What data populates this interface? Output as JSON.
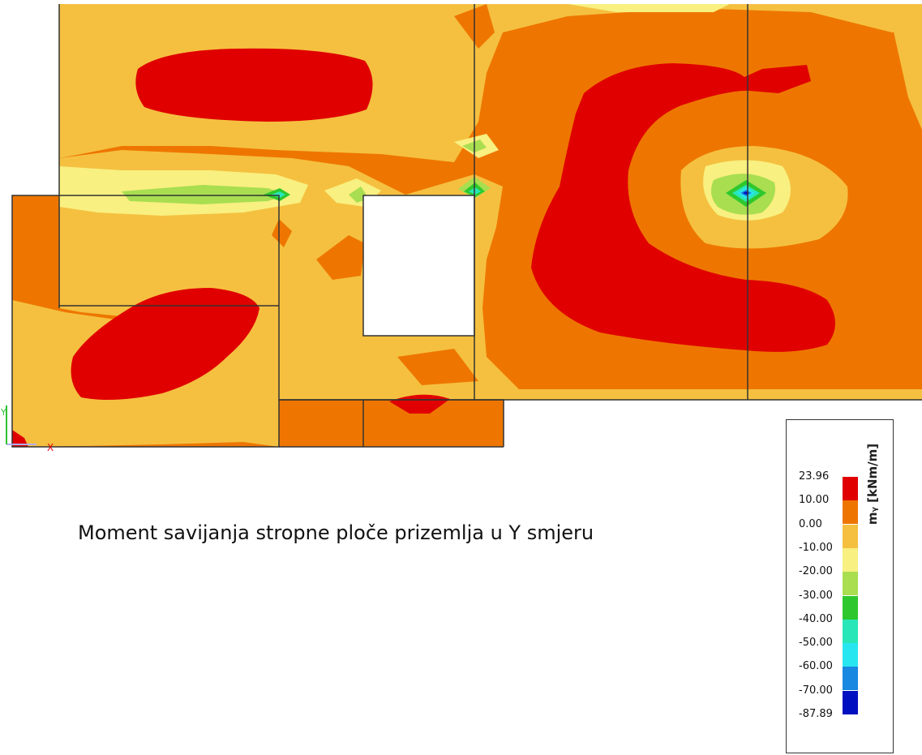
{
  "caption": "Moment savijanja stropne ploče prizemlja u Y smjeru",
  "legend": {
    "title": "mᵧ [kNm/m]",
    "labels": [
      "23.96",
      "10.00",
      "0.00",
      "-10.00",
      "-20.00",
      "-30.00",
      "-40.00",
      "-50.00",
      "-60.00",
      "-70.00",
      "-87.89"
    ],
    "colors": [
      "#e00000",
      "#ee7600",
      "#f5c040",
      "#f8f080",
      "#a8de50",
      "#2ec82e",
      "#28e6b8",
      "#28e6f0",
      "#1888e0",
      "#0010c0"
    ]
  },
  "axis_marks": {
    "x": "X",
    "y": "Y"
  }
}
